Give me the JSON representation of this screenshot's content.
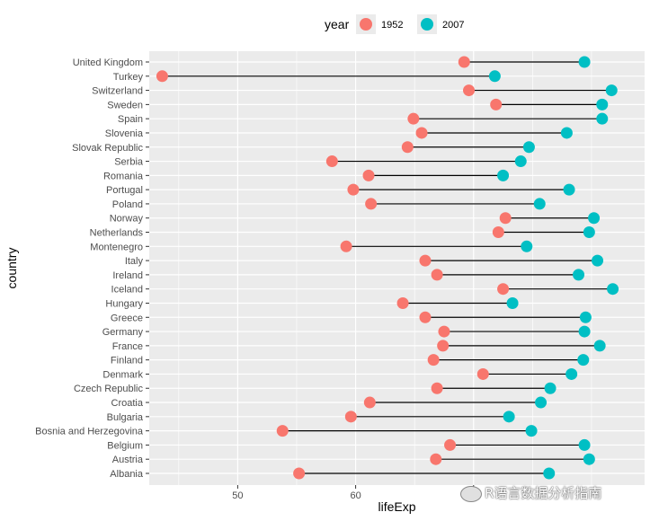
{
  "chart_data": {
    "type": "dumbbell",
    "title": "",
    "xlabel": "lifeExp",
    "ylabel": "country",
    "xlim": [
      42.5,
      84.5
    ],
    "xticks": [
      50,
      60,
      70
    ],
    "legend": {
      "title": "year",
      "position": "top",
      "entries": [
        "1952",
        "2007"
      ],
      "colors": [
        "#F8766D",
        "#00BFC4"
      ]
    },
    "panel_background": "#EBEBEB",
    "grid": true,
    "categories": [
      "United Kingdom",
      "Turkey",
      "Switzerland",
      "Sweden",
      "Spain",
      "Slovenia",
      "Slovak Republic",
      "Serbia",
      "Romania",
      "Portugal",
      "Poland",
      "Norway",
      "Netherlands",
      "Montenegro",
      "Italy",
      "Ireland",
      "Iceland",
      "Hungary",
      "Greece",
      "Germany",
      "France",
      "Finland",
      "Denmark",
      "Czech Republic",
      "Croatia",
      "Bulgaria",
      "Bosnia and Herzegovina",
      "Belgium",
      "Austria",
      "Albania"
    ],
    "series": [
      {
        "name": "1952",
        "values": [
          69.2,
          43.6,
          69.6,
          71.9,
          64.9,
          65.6,
          64.4,
          58.0,
          61.1,
          59.8,
          61.3,
          72.7,
          72.1,
          59.2,
          65.9,
          66.9,
          72.5,
          64.0,
          65.9,
          67.5,
          67.4,
          66.6,
          70.8,
          66.9,
          61.2,
          59.6,
          53.8,
          68.0,
          66.8,
          55.2
        ]
      },
      {
        "name": "2007",
        "values": [
          79.4,
          71.8,
          81.7,
          80.9,
          80.9,
          77.9,
          74.7,
          74.0,
          72.5,
          78.1,
          75.6,
          80.2,
          79.8,
          74.5,
          80.5,
          78.9,
          81.8,
          73.3,
          79.5,
          79.4,
          80.7,
          79.3,
          78.3,
          76.5,
          75.7,
          73.0,
          74.9,
          79.4,
          79.8,
          76.4
        ]
      }
    ]
  },
  "watermark": "R语言数据分析指南"
}
